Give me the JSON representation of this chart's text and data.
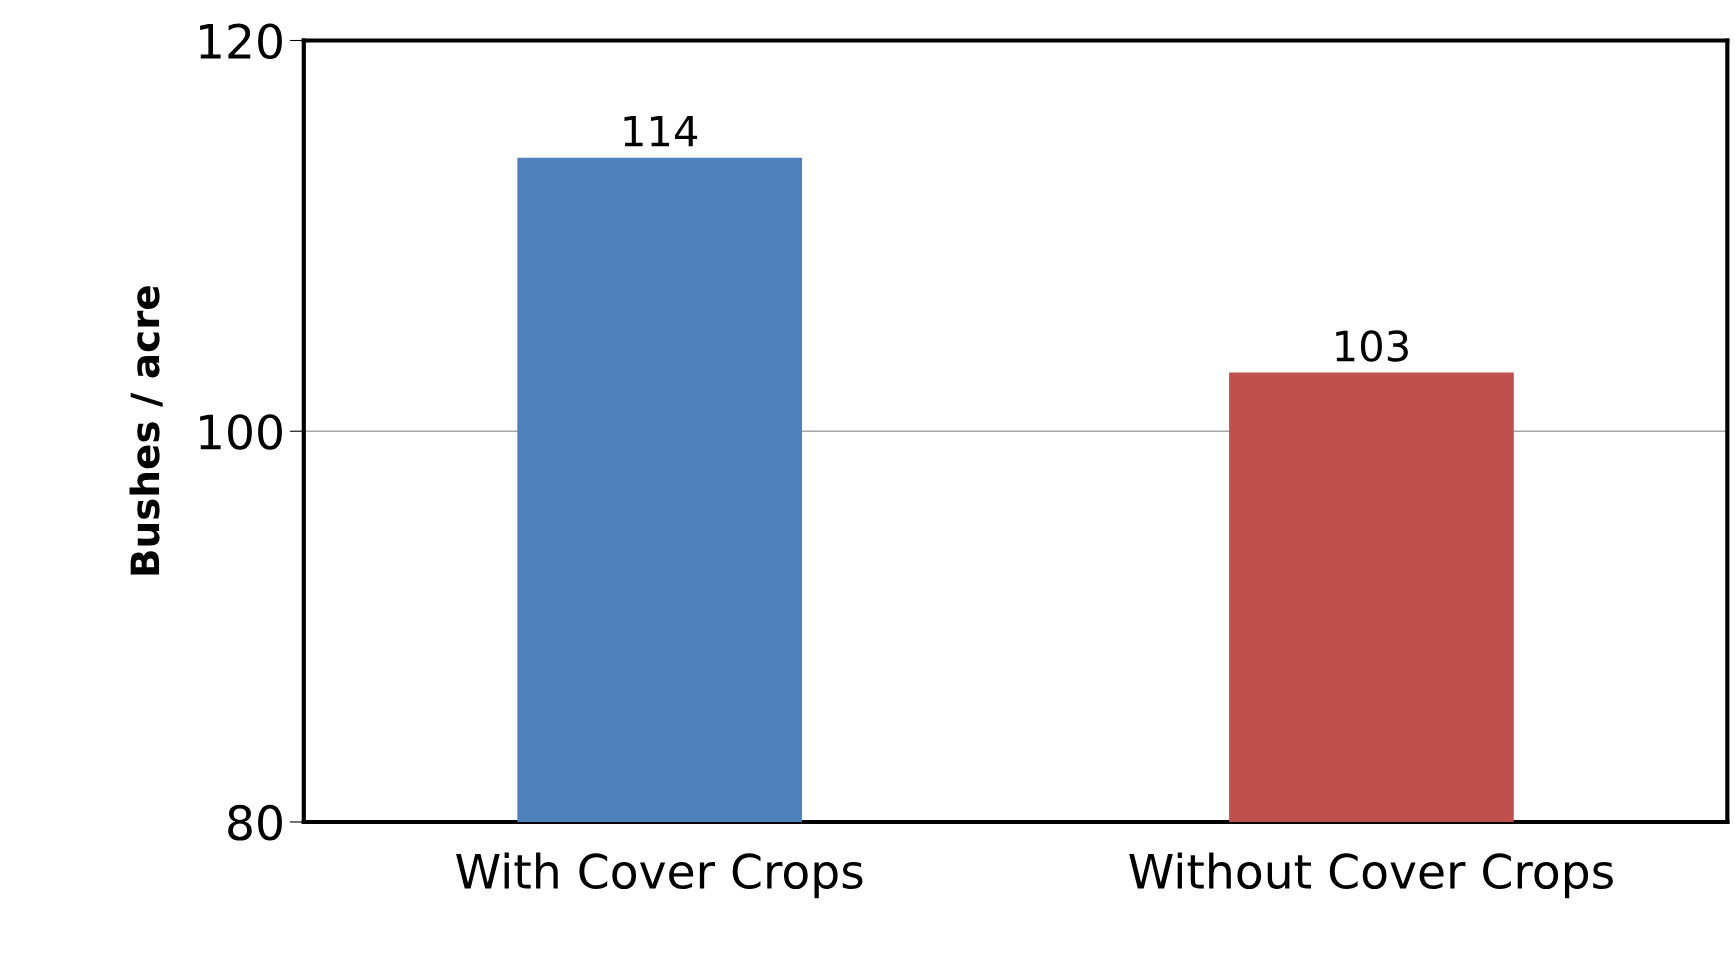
{
  "chart_data": {
    "type": "bar",
    "ylabel": "Bushes / acre",
    "categories": [
      "With Cover Crops",
      "Without Cover Crops"
    ],
    "values": [
      114,
      103
    ],
    "colors": [
      "#4f81bd",
      "#c0504d"
    ],
    "ylim": [
      80,
      120
    ],
    "yticks": [
      80,
      100,
      120
    ],
    "grid": "y",
    "data_labels": true
  }
}
